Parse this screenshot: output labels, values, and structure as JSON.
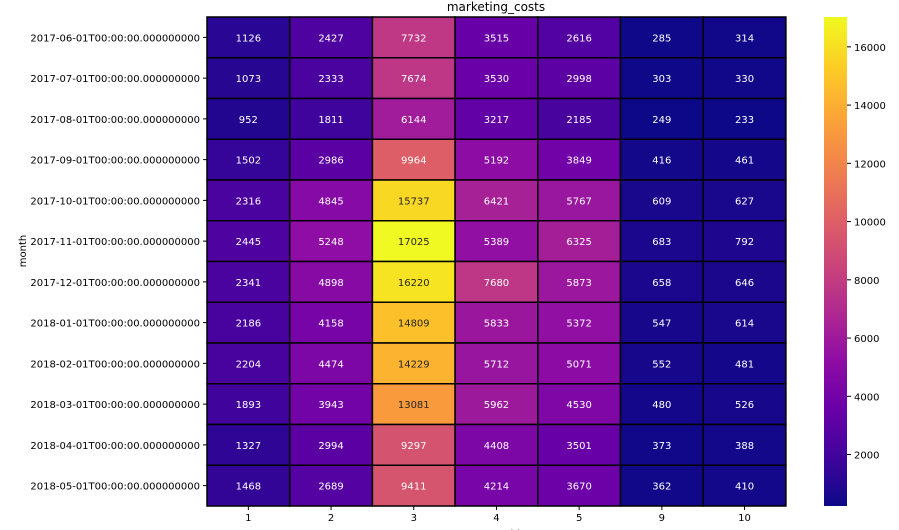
{
  "chart_data": {
    "type": "heatmap",
    "title": "marketing_costs",
    "ylabel": "month",
    "xlabel": "source_id",
    "colormap": "plasma",
    "x": [
      "1",
      "2",
      "3",
      "4",
      "5",
      "9",
      "10"
    ],
    "y": [
      "2017-06-01T00:00:00.000000000",
      "2017-07-01T00:00:00.000000000",
      "2017-08-01T00:00:00.000000000",
      "2017-09-01T00:00:00.000000000",
      "2017-10-01T00:00:00.000000000",
      "2017-11-01T00:00:00.000000000",
      "2017-12-01T00:00:00.000000000",
      "2018-01-01T00:00:00.000000000",
      "2018-02-01T00:00:00.000000000",
      "2018-03-01T00:00:00.000000000",
      "2018-04-01T00:00:00.000000000",
      "2018-05-01T00:00:00.000000000"
    ],
    "values": [
      [
        1126,
        2427,
        7732,
        3515,
        2616,
        285,
        314
      ],
      [
        1073,
        2333,
        7674,
        3530,
        2998,
        303,
        330
      ],
      [
        952,
        1811,
        6144,
        3217,
        2185,
        249,
        233
      ],
      [
        1502,
        2986,
        9964,
        5192,
        3849,
        416,
        461
      ],
      [
        2316,
        4845,
        15737,
        6421,
        5767,
        609,
        627
      ],
      [
        2445,
        5248,
        17025,
        5389,
        6325,
        683,
        792
      ],
      [
        2341,
        4898,
        16220,
        7680,
        5873,
        658,
        646
      ],
      [
        2186,
        4158,
        14809,
        5833,
        5372,
        547,
        614
      ],
      [
        2204,
        4474,
        14229,
        5712,
        5071,
        552,
        481
      ],
      [
        1893,
        3943,
        13081,
        5962,
        4530,
        480,
        526
      ],
      [
        1327,
        2994,
        9297,
        4408,
        3501,
        373,
        388
      ],
      [
        1468,
        2689,
        9411,
        4214,
        3670,
        362,
        410
      ]
    ],
    "color_range": [
      233,
      17025
    ],
    "colorbar_ticks": [
      2000,
      4000,
      6000,
      8000,
      10000,
      12000,
      14000,
      16000
    ],
    "annotations": true,
    "grid": false,
    "legend": "colorbar right"
  }
}
